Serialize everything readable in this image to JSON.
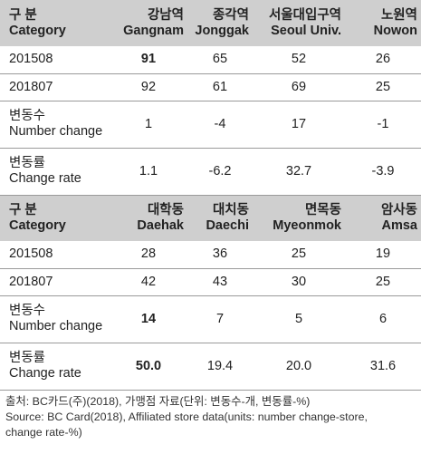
{
  "table": {
    "header_label_ko": "구 분",
    "header_label_en": "Category",
    "rows_labels": {
      "r1": "201508",
      "r2": "201807",
      "r3_ko": "변동수",
      "r3_en": "Number change",
      "r4_ko": "변동률",
      "r4_en": "Change rate"
    },
    "section1": {
      "locations": [
        {
          "ko": "강남역",
          "en": "Gangnam"
        },
        {
          "ko": "종각역",
          "en": "Jonggak"
        },
        {
          "ko": "서울대입구역",
          "en": "Seoul Univ."
        },
        {
          "ko": "노원역",
          "en": "Nowon"
        }
      ],
      "r201508": [
        "91",
        "65",
        "52",
        "26"
      ],
      "r201807": [
        "92",
        "61",
        "69",
        "25"
      ],
      "number_change": [
        "1",
        "-4",
        "17",
        "-1"
      ],
      "change_rate": [
        "1.1",
        "-6.2",
        "32.7",
        "-3.9"
      ]
    },
    "section2": {
      "locations": [
        {
          "ko": "대학동",
          "en": "Daehak"
        },
        {
          "ko": "대치동",
          "en": "Daechi"
        },
        {
          "ko": "면목동",
          "en": "Myeonmok"
        },
        {
          "ko": "암사동",
          "en": "Amsa"
        }
      ],
      "r201508": [
        "28",
        "36",
        "25",
        "19"
      ],
      "r201807": [
        "42",
        "43",
        "30",
        "25"
      ],
      "number_change": [
        "14",
        "7",
        "5",
        "6"
      ],
      "change_rate": [
        "50.0",
        "19.4",
        "20.0",
        "31.6"
      ]
    }
  },
  "source": {
    "line1": "출처: BC카드(주)(2018), 가맹점 자료(단위: 변동수-개, 변동률-%)",
    "line2": "Source: BC Card(2018), Affiliated store data(units: number change-store,",
    "line3": "change rate-%)"
  }
}
